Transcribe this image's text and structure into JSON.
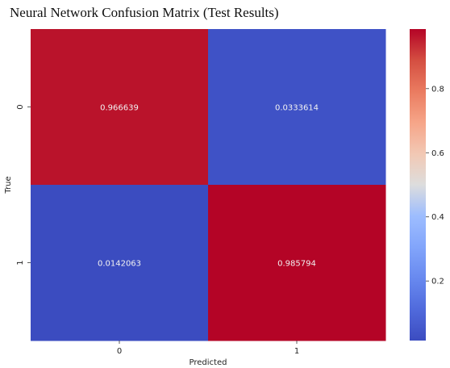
{
  "chart_data": {
    "type": "heatmap",
    "title": "Neural Network Confusion Matrix (Test Results)",
    "xlabel": "Predicted",
    "ylabel": "True",
    "x_categories": [
      "0",
      "1"
    ],
    "y_categories": [
      "0",
      "1"
    ],
    "values": [
      [
        0.966639,
        0.0333614
      ],
      [
        0.0142063,
        0.985794
      ]
    ],
    "cell_labels": [
      [
        "0.966639",
        "0.0333614"
      ],
      [
        "0.0142063",
        "0.985794"
      ]
    ],
    "colormap": "coolwarm",
    "colorbar": {
      "range": [
        0.0142063,
        0.985794
      ],
      "ticks": [
        0.2,
        0.4,
        0.6,
        0.8
      ],
      "tick_labels": [
        "0.2",
        "0.4",
        "0.6",
        "0.8"
      ]
    },
    "colors": {
      "low": "#3b4cc0",
      "mid": "#dddddd",
      "high": "#b40426"
    }
  }
}
